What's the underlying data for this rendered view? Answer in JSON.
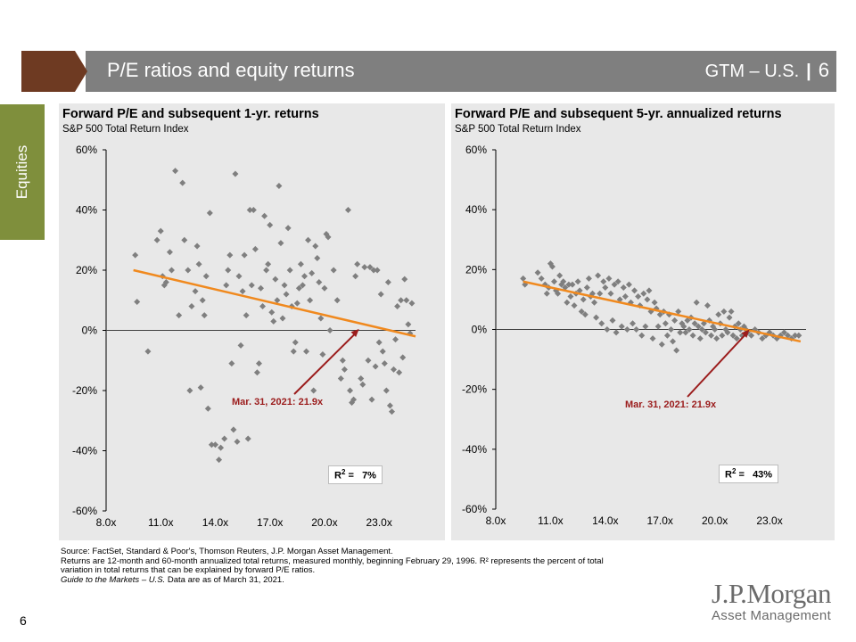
{
  "header": {
    "title": "P/E ratios and equity returns",
    "gtm": "GTM – U.S.",
    "separator": "|",
    "page": "6"
  },
  "side_tab": "Equities",
  "footer": {
    "source": "Source: FactSet, Standard & Poor's, Thomson Reuters, J.P. Morgan Asset Management.",
    "note1": "Returns are 12-month and 60-month annualized total returns, measured monthly, beginning February 29, 1996. R² represents the percent of total",
    "note2": "variation in total returns that can be explained by forward P/E ratios.",
    "guide_italic": "Guide to the Markets – U.S.",
    "guide_rest": " Data are as of March 31, 2021.",
    "page_number": "6"
  },
  "logo": {
    "line1": "J.P.Morgan",
    "line2": "Asset Management"
  },
  "colors": {
    "accent_brown": "#6e3a22",
    "header_gray": "#7f7f7f",
    "side_green": "#7f8f3c",
    "dot": "#7f7f7f",
    "trend": "#f0891e",
    "arrow": "#9b1c1c"
  },
  "chart_data": [
    {
      "type": "scatter",
      "title": "Forward P/E and subsequent 1-yr. returns",
      "subtitle": "S&P 500 Total Return Index",
      "x_ticks": [
        "8.0x",
        "11.0x",
        "14.0x",
        "17.0x",
        "20.0x",
        "23.0x"
      ],
      "y_ticks": [
        "60%",
        "40%",
        "20%",
        "0%",
        "-20%",
        "-40%",
        "-60%"
      ],
      "xlim": [
        8,
        25
      ],
      "ylim": [
        -60,
        60
      ],
      "trend": [
        [
          9.5,
          20
        ],
        [
          25,
          -2
        ]
      ],
      "annotation": {
        "text": "Mar. 31, 2021: 21.9x",
        "x": 21.9,
        "y": 0.5
      },
      "r2_label": "R",
      "r2_sup": "2",
      "r2_eq": " =",
      "r2_value": "7%",
      "points": [
        [
          9.6,
          25
        ],
        [
          9.7,
          9.5
        ],
        [
          10.3,
          -7
        ],
        [
          10.8,
          30
        ],
        [
          11,
          33
        ],
        [
          11.1,
          18
        ],
        [
          11.2,
          15
        ],
        [
          11.3,
          16
        ],
        [
          11.5,
          26
        ],
        [
          11.6,
          20
        ],
        [
          11.8,
          53
        ],
        [
          12,
          5
        ],
        [
          12.2,
          49
        ],
        [
          12.3,
          30
        ],
        [
          12.5,
          20
        ],
        [
          12.6,
          -20
        ],
        [
          12.7,
          8
        ],
        [
          12.9,
          13
        ],
        [
          13,
          28
        ],
        [
          13.1,
          22
        ],
        [
          13.2,
          -19
        ],
        [
          13.3,
          10
        ],
        [
          13.4,
          5
        ],
        [
          13.5,
          18
        ],
        [
          13.6,
          -26
        ],
        [
          13.7,
          39
        ],
        [
          13.8,
          -38
        ],
        [
          14,
          -38
        ],
        [
          14.2,
          -43
        ],
        [
          14.3,
          -39
        ],
        [
          14.5,
          -36
        ],
        [
          14.6,
          15
        ],
        [
          14.7,
          20
        ],
        [
          14.8,
          25
        ],
        [
          14.9,
          -11
        ],
        [
          15,
          -33
        ],
        [
          15.1,
          52
        ],
        [
          15.2,
          -37
        ],
        [
          15.3,
          18
        ],
        [
          15.4,
          -5
        ],
        [
          15.5,
          13
        ],
        [
          15.6,
          25
        ],
        [
          15.7,
          5
        ],
        [
          15.8,
          -36
        ],
        [
          15.9,
          40
        ],
        [
          16,
          15
        ],
        [
          16.1,
          40
        ],
        [
          16.2,
          27
        ],
        [
          16.3,
          -14
        ],
        [
          16.4,
          -11
        ],
        [
          16.5,
          14
        ],
        [
          16.6,
          8
        ],
        [
          16.7,
          38
        ],
        [
          16.8,
          20
        ],
        [
          16.9,
          22
        ],
        [
          17,
          35
        ],
        [
          17.1,
          6
        ],
        [
          17.2,
          3
        ],
        [
          17.3,
          17
        ],
        [
          17.4,
          10
        ],
        [
          17.5,
          48
        ],
        [
          17.6,
          29
        ],
        [
          17.7,
          4
        ],
        [
          17.8,
          15
        ],
        [
          17.9,
          12
        ],
        [
          18,
          34
        ],
        [
          18.1,
          20
        ],
        [
          18.2,
          8
        ],
        [
          18.3,
          -7
        ],
        [
          18.4,
          -4
        ],
        [
          18.5,
          9
        ],
        [
          18.6,
          14
        ],
        [
          18.7,
          22
        ],
        [
          18.8,
          15
        ],
        [
          18.9,
          18
        ],
        [
          19,
          -7
        ],
        [
          19.1,
          30
        ],
        [
          19.2,
          10
        ],
        [
          19.3,
          19
        ],
        [
          19.4,
          -20
        ],
        [
          19.5,
          28
        ],
        [
          19.6,
          24
        ],
        [
          19.7,
          16
        ],
        [
          19.8,
          4
        ],
        [
          19.9,
          -8
        ],
        [
          20,
          14
        ],
        [
          20.1,
          32
        ],
        [
          20.2,
          31
        ],
        [
          20.3,
          0
        ],
        [
          20.5,
          20
        ],
        [
          20.7,
          10
        ],
        [
          20.9,
          -16
        ],
        [
          21,
          -10
        ],
        [
          21.1,
          -13
        ],
        [
          21.3,
          40
        ],
        [
          21.4,
          -20
        ],
        [
          21.5,
          -24
        ],
        [
          21.6,
          -23
        ],
        [
          21.7,
          18
        ],
        [
          21.8,
          22
        ],
        [
          22,
          -16
        ],
        [
          22.1,
          -18
        ],
        [
          22.2,
          21
        ],
        [
          22.4,
          -10
        ],
        [
          22.5,
          21
        ],
        [
          22.6,
          -23
        ],
        [
          22.7,
          20
        ],
        [
          22.8,
          -12
        ],
        [
          22.9,
          20
        ],
        [
          23,
          -4
        ],
        [
          23.1,
          12
        ],
        [
          23.2,
          -7
        ],
        [
          23.3,
          -11
        ],
        [
          23.4,
          -20
        ],
        [
          23.5,
          16
        ],
        [
          23.6,
          -25
        ],
        [
          23.7,
          -27
        ],
        [
          23.8,
          -13
        ],
        [
          23.9,
          -3
        ],
        [
          24,
          8
        ],
        [
          24.1,
          -14
        ],
        [
          24.2,
          10
        ],
        [
          24.3,
          -9
        ],
        [
          24.4,
          17
        ],
        [
          24.5,
          10
        ],
        [
          24.6,
          2
        ],
        [
          24.7,
          -1
        ],
        [
          24.8,
          9
        ]
      ]
    },
    {
      "type": "scatter",
      "title": "Forward P/E and subsequent 5-yr. annualized returns",
      "subtitle": "S&P 500 Total Return Index",
      "x_ticks": [
        "8.0x",
        "11.0x",
        "14.0x",
        "17.0x",
        "20.0x",
        "23.0x"
      ],
      "y_ticks": [
        "60%",
        "40%",
        "20%",
        "0%",
        "-20%",
        "-40%",
        "-60%"
      ],
      "xlim": [
        8,
        25
      ],
      "ylim": [
        -60,
        60
      ],
      "trend": [
        [
          9.5,
          16
        ],
        [
          24.7,
          -4
        ]
      ],
      "annotation": {
        "text": "Mar. 31, 2021: 21.9x",
        "x": 21.9,
        "y": 0
      },
      "r2_label": "R",
      "r2_sup": "2",
      "r2_eq": " =",
      "r2_value": "43%",
      "points": [
        [
          9.5,
          17
        ],
        [
          9.6,
          15
        ],
        [
          10.3,
          19
        ],
        [
          10.5,
          17
        ],
        [
          10.7,
          15
        ],
        [
          10.8,
          12
        ],
        [
          10.9,
          14
        ],
        [
          11,
          22
        ],
        [
          11.1,
          21
        ],
        [
          11.2,
          16
        ],
        [
          11.3,
          13
        ],
        [
          11.4,
          12
        ],
        [
          11.5,
          18
        ],
        [
          11.6,
          15
        ],
        [
          11.7,
          16
        ],
        [
          11.8,
          14
        ],
        [
          11.9,
          9
        ],
        [
          12,
          15
        ],
        [
          12.1,
          11
        ],
        [
          12.2,
          15
        ],
        [
          12.3,
          8
        ],
        [
          12.4,
          12
        ],
        [
          12.5,
          16
        ],
        [
          12.6,
          13
        ],
        [
          12.7,
          6
        ],
        [
          12.8,
          10
        ],
        [
          12.9,
          5
        ],
        [
          13,
          14
        ],
        [
          13.1,
          17
        ],
        [
          13.2,
          11
        ],
        [
          13.3,
          12
        ],
        [
          13.4,
          9
        ],
        [
          13.5,
          4
        ],
        [
          13.6,
          18
        ],
        [
          13.7,
          12
        ],
        [
          13.8,
          2
        ],
        [
          13.9,
          16
        ],
        [
          14,
          14
        ],
        [
          14.1,
          0
        ],
        [
          14.2,
          17
        ],
        [
          14.3,
          12
        ],
        [
          14.4,
          3
        ],
        [
          14.5,
          15
        ],
        [
          14.6,
          -1
        ],
        [
          14.7,
          16
        ],
        [
          14.8,
          10
        ],
        [
          14.9,
          1
        ],
        [
          15,
          14
        ],
        [
          15.1,
          11
        ],
        [
          15.2,
          0
        ],
        [
          15.3,
          15
        ],
        [
          15.4,
          9
        ],
        [
          15.5,
          2
        ],
        [
          15.6,
          13
        ],
        [
          15.7,
          0
        ],
        [
          15.8,
          11
        ],
        [
          15.9,
          8
        ],
        [
          16,
          -2
        ],
        [
          16.1,
          12
        ],
        [
          16.2,
          1
        ],
        [
          16.3,
          10
        ],
        [
          16.4,
          13
        ],
        [
          16.5,
          6
        ],
        [
          16.6,
          -3
        ],
        [
          16.7,
          9
        ],
        [
          16.8,
          7
        ],
        [
          16.9,
          1
        ],
        [
          17,
          5
        ],
        [
          17.1,
          -5
        ],
        [
          17.2,
          6
        ],
        [
          17.3,
          2
        ],
        [
          17.4,
          -2
        ],
        [
          17.5,
          5
        ],
        [
          17.6,
          0
        ],
        [
          17.7,
          -4
        ],
        [
          17.8,
          3
        ],
        [
          17.9,
          -7
        ],
        [
          18,
          6
        ],
        [
          18.1,
          -1
        ],
        [
          18.2,
          2
        ],
        [
          18.3,
          1
        ],
        [
          18.4,
          -1
        ],
        [
          18.5,
          3
        ],
        [
          18.6,
          0
        ],
        [
          18.7,
          4
        ],
        [
          18.8,
          -2
        ],
        [
          18.9,
          2
        ],
        [
          19,
          9
        ],
        [
          19.1,
          1
        ],
        [
          19.2,
          -3
        ],
        [
          19.3,
          0
        ],
        [
          19.4,
          2
        ],
        [
          19.5,
          -1
        ],
        [
          19.6,
          8
        ],
        [
          19.7,
          3
        ],
        [
          19.8,
          -2
        ],
        [
          19.9,
          1
        ],
        [
          20,
          0
        ],
        [
          20.1,
          -3
        ],
        [
          20.2,
          5
        ],
        [
          20.3,
          2
        ],
        [
          20.4,
          -2
        ],
        [
          20.5,
          6
        ],
        [
          20.6,
          0
        ],
        [
          20.7,
          -1
        ],
        [
          20.8,
          4
        ],
        [
          20.9,
          6
        ],
        [
          21,
          -2
        ],
        [
          21.1,
          1
        ],
        [
          21.2,
          -3
        ],
        [
          21.3,
          2
        ],
        [
          21.4,
          0
        ],
        [
          21.5,
          -2
        ],
        [
          21.6,
          1
        ],
        [
          21.7,
          0
        ],
        [
          21.8,
          -1
        ],
        [
          22,
          -2
        ],
        [
          22.2,
          0
        ],
        [
          22.4,
          -1
        ],
        [
          22.6,
          -3
        ],
        [
          22.8,
          -2
        ],
        [
          23,
          -1
        ],
        [
          23.2,
          -2
        ],
        [
          23.4,
          -3
        ],
        [
          23.6,
          -2
        ],
        [
          23.8,
          -1
        ],
        [
          24,
          -2
        ],
        [
          24.2,
          -3
        ],
        [
          24.4,
          -2
        ],
        [
          24.6,
          -2
        ]
      ]
    }
  ]
}
